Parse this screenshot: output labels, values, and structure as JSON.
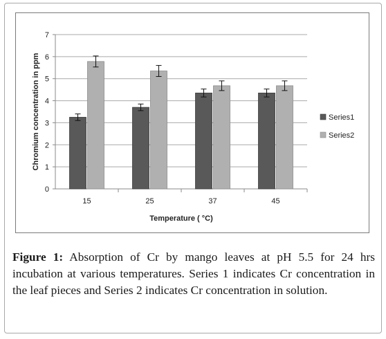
{
  "chart_data": {
    "type": "bar",
    "categories": [
      "15",
      "25",
      "37",
      "45"
    ],
    "series": [
      {
        "name": "Series1",
        "values": [
          3.25,
          3.7,
          4.35,
          4.35
        ],
        "errors": [
          0.15,
          0.15,
          0.18,
          0.18
        ],
        "color": "#595959"
      },
      {
        "name": "Series2",
        "values": [
          5.78,
          5.35,
          4.68,
          4.68
        ],
        "errors": [
          0.25,
          0.25,
          0.22,
          0.22
        ],
        "color": "#b0b0b0"
      }
    ],
    "title": "",
    "xlabel": "Temperature ( °C)",
    "ylabel": "Chromium concentration in ppm",
    "ylim": [
      0,
      7
    ],
    "yticks": [
      "0",
      "1",
      "2",
      "3",
      "4",
      "5",
      "6",
      "7"
    ],
    "grid": true,
    "legend_position": "right"
  },
  "caption": {
    "label": "Figure 1:",
    "text": " Absorption of Cr by mango leaves at pH 5.5 for 24 hrs incubation at various temperatures. Series 1 indicates Cr concentration in the leaf pieces and Series 2 indicates Cr concentration in solution."
  }
}
